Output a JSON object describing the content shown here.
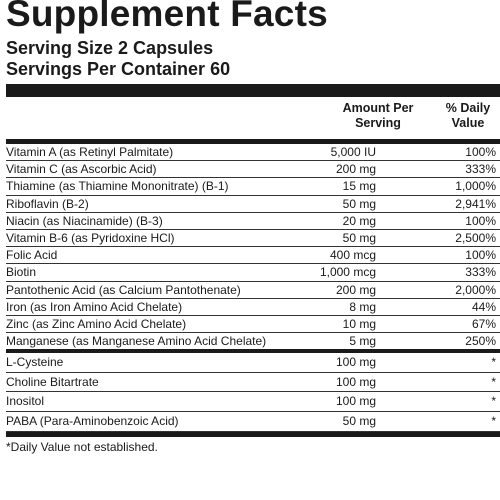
{
  "title": "Supplement Facts",
  "serving_size": "Serving Size 2 Capsules",
  "servings_per_container": "Servings Per Container 60",
  "headers": {
    "amount_line1": "Amount Per",
    "amount_line2": "Serving",
    "dv_line1": "% Daily",
    "dv_line2": "Value"
  },
  "nutrients": [
    {
      "name": "Vitamin A (as Retinyl Palmitate)",
      "amount": "5,000 IU",
      "dv": "100%"
    },
    {
      "name": "Vitamin C (as Ascorbic Acid)",
      "amount": "200 mg",
      "dv": "333%"
    },
    {
      "name": "Thiamine (as Thiamine Mononitrate) (B-1)",
      "amount": "15 mg",
      "dv": "1,000%"
    },
    {
      "name": "Riboflavin (B-2)",
      "amount": "50 mg",
      "dv": "2,941%"
    },
    {
      "name": "Niacin (as Niacinamide) (B-3)",
      "amount": "20 mg",
      "dv": "100%"
    },
    {
      "name": "Vitamin B-6 (as Pyridoxine HCl)",
      "amount": "50 mg",
      "dv": "2,500%"
    },
    {
      "name": "Folic Acid",
      "amount": "400 mcg",
      "dv": "100%"
    },
    {
      "name": "Biotin",
      "amount": "1,000 mcg",
      "dv": "333%"
    },
    {
      "name": "Pantothenic Acid (as Calcium Pantothenate)",
      "amount": "200 mg",
      "dv": "2,000%"
    },
    {
      "name": "Iron (as Iron Amino Acid Chelate)",
      "amount": "8 mg",
      "dv": "44%"
    },
    {
      "name": "Zinc (as Zinc Amino Acid Chelate)",
      "amount": "10 mg",
      "dv": "67%"
    },
    {
      "name": "Manganese (as Manganese Amino Acid Chelate)",
      "amount": "5 mg",
      "dv": "250%"
    }
  ],
  "other_ingredients": [
    {
      "name": "L-Cysteine",
      "amount": "100 mg",
      "dv": "*"
    },
    {
      "name": "Choline Bitartrate",
      "amount": "100 mg",
      "dv": "*"
    },
    {
      "name": "Inositol",
      "amount": "100 mg",
      "dv": "*"
    },
    {
      "name": "PABA (Para-Aminobenzoic Acid)",
      "amount": "50 mg",
      "dv": "*"
    }
  ],
  "footnote": "*Daily Value not established."
}
